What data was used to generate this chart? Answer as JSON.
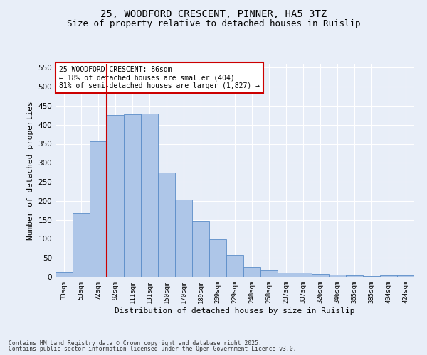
{
  "title1": "25, WOODFORD CRESCENT, PINNER, HA5 3TZ",
  "title2": "Size of property relative to detached houses in Ruislip",
  "xlabel": "Distribution of detached houses by size in Ruislip",
  "ylabel": "Number of detached properties",
  "categories": [
    "33sqm",
    "53sqm",
    "72sqm",
    "92sqm",
    "111sqm",
    "131sqm",
    "150sqm",
    "170sqm",
    "189sqm",
    "209sqm",
    "229sqm",
    "248sqm",
    "268sqm",
    "287sqm",
    "307sqm",
    "326sqm",
    "346sqm",
    "365sqm",
    "385sqm",
    "404sqm",
    "424sqm"
  ],
  "values": [
    13,
    168,
    357,
    425,
    428,
    430,
    275,
    203,
    148,
    99,
    57,
    26,
    19,
    11,
    11,
    7,
    5,
    4,
    1,
    3,
    3
  ],
  "bar_color": "#aec6e8",
  "bar_edge_color": "#5b8dc8",
  "vline_color": "#cc0000",
  "annotation_text": "25 WOODFORD CRESCENT: 86sqm\n← 18% of detached houses are smaller (404)\n81% of semi-detached houses are larger (1,827) →",
  "annotation_box_color": "#ffffff",
  "annotation_box_edge": "#cc0000",
  "ylim": [
    0,
    560
  ],
  "yticks": [
    0,
    50,
    100,
    150,
    200,
    250,
    300,
    350,
    400,
    450,
    500,
    550
  ],
  "bg_color": "#e8eef8",
  "footer1": "Contains HM Land Registry data © Crown copyright and database right 2025.",
  "footer2": "Contains public sector information licensed under the Open Government Licence v3.0.",
  "title1_fontsize": 10,
  "title2_fontsize": 9
}
